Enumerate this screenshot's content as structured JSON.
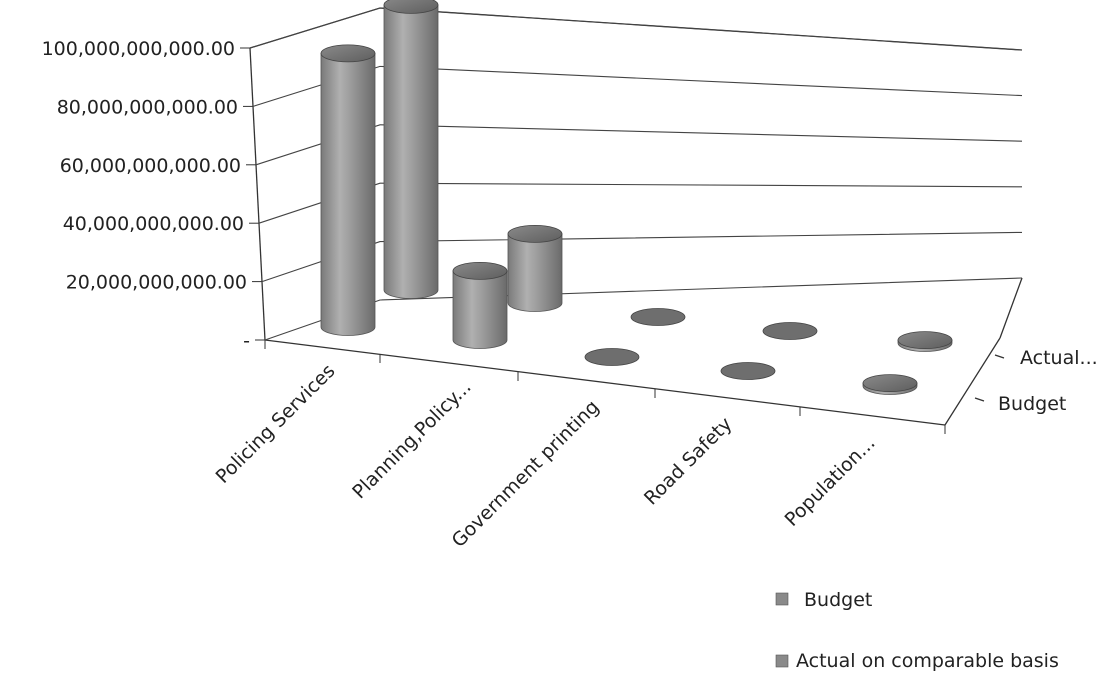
{
  "chart_data": {
    "type": "bar",
    "style": "3d-cylinder",
    "title": "",
    "xlabel": "",
    "ylabel": "",
    "categories": [
      "Policing Services",
      "Planning,Policy...",
      "Government printing",
      "Road Safety",
      "Population..."
    ],
    "depth_labels": [
      "Actual...",
      "Budget"
    ],
    "series": [
      {
        "name": "Budget",
        "values": [
          95000000000,
          24000000000,
          0,
          0,
          1000000000
        ],
        "color": "#8f8f8f"
      },
      {
        "name": "Actual on comparable basis",
        "values": [
          99000000000,
          24000000000,
          0,
          0,
          1000000000
        ],
        "color": "#9a9a9a"
      }
    ],
    "yticks": [
      "-",
      "20,000,000,000.00",
      "40,000,000,000.00",
      "60,000,000,000.00",
      "80,000,000,000.00",
      "100,000,000,000.00"
    ],
    "ylim": [
      0,
      100000000000
    ],
    "grid": true,
    "legend": {
      "position": "bottom-right",
      "items": [
        "Budget",
        "Actual on comparable basis"
      ]
    }
  }
}
